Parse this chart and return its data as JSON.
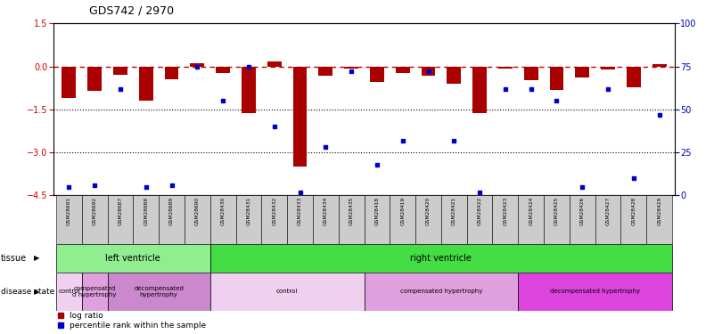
{
  "title": "GDS742 / 2970",
  "samples": [
    "GSM28691",
    "GSM28692",
    "GSM28687",
    "GSM28688",
    "GSM28689",
    "GSM28690",
    "GSM28430",
    "GSM28431",
    "GSM28432",
    "GSM28433",
    "GSM28434",
    "GSM28435",
    "GSM28418",
    "GSM28419",
    "GSM28420",
    "GSM28421",
    "GSM28422",
    "GSM28423",
    "GSM28424",
    "GSM28425",
    "GSM28426",
    "GSM28427",
    "GSM28428",
    "GSM28429"
  ],
  "log_ratio": [
    -1.1,
    -0.85,
    -0.28,
    -1.2,
    -0.45,
    0.12,
    -0.22,
    -1.62,
    0.18,
    -3.5,
    -0.32,
    -0.08,
    -0.55,
    -0.22,
    -0.32,
    -0.62,
    -1.62,
    -0.08,
    -0.48,
    -0.82,
    -0.38,
    -0.12,
    -0.72,
    0.08
  ],
  "percentile": [
    5,
    6,
    62,
    5,
    6,
    75,
    55,
    75,
    40,
    2,
    28,
    72,
    18,
    32,
    72,
    32,
    2,
    62,
    62,
    55,
    5,
    62,
    10,
    47
  ],
  "tissue_groups": [
    {
      "label": "left ventricle",
      "start": 0,
      "end": 6,
      "color": "#90EE90"
    },
    {
      "label": "right ventricle",
      "start": 6,
      "end": 24,
      "color": "#44DD44"
    }
  ],
  "disease_groups": [
    {
      "label": "control",
      "start": 0,
      "end": 1,
      "color": "#F0D0F0"
    },
    {
      "label": "compensated\nd hypertrophy",
      "start": 1,
      "end": 2,
      "color": "#E0A0E0"
    },
    {
      "label": "decompensated\nhypertrophy",
      "start": 2,
      "end": 6,
      "color": "#CC88CC"
    },
    {
      "label": "control",
      "start": 6,
      "end": 12,
      "color": "#F0D0F0"
    },
    {
      "label": "compensated hypertrophy",
      "start": 12,
      "end": 18,
      "color": "#E0A0E0"
    },
    {
      "label": "decompensated hypertrophy",
      "start": 18,
      "end": 24,
      "color": "#DD44DD"
    }
  ],
  "bar_color": "#AA0000",
  "dot_color": "#0000CC",
  "dashed_line_color": "#CC0000",
  "bg_color": "#FFFFFF",
  "ylim_left": [
    -4.5,
    1.5
  ],
  "ylim_right": [
    0,
    100
  ],
  "yticks_left": [
    1.5,
    0.0,
    -1.5,
    -3.0,
    -4.5
  ],
  "yticks_right": [
    100,
    75,
    50,
    25,
    0
  ],
  "hline_positions": [
    -1.5,
    -3.0
  ],
  "left_axis_color": "#CC0000",
  "right_axis_color": "#0000BB"
}
